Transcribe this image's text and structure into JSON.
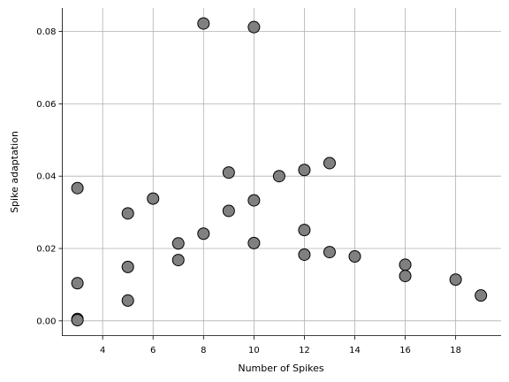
{
  "chart_data": {
    "type": "scatter",
    "xlabel": "Number of Spikes",
    "ylabel": "Spike adaptation",
    "xlim": [
      2.4,
      19.8
    ],
    "ylim": [
      -0.0042,
      0.0865
    ],
    "xticks": [
      4,
      6,
      8,
      10,
      12,
      14,
      16,
      18
    ],
    "xtick_labels": [
      "4",
      "6",
      "8",
      "10",
      "12",
      "14",
      "16",
      "18"
    ],
    "yticks": [
      0.0,
      0.02,
      0.04,
      0.06,
      0.08
    ],
    "ytick_labels": [
      "0.00",
      "0.02",
      "0.04",
      "0.06",
      "0.08"
    ],
    "grid": true,
    "marker_color": "#808080",
    "marker_edge_color": "#000000",
    "points": [
      {
        "x": 3,
        "y": 0.0367
      },
      {
        "x": 3,
        "y": 0.0104
      },
      {
        "x": 3,
        "y": 0.0005
      },
      {
        "x": 3,
        "y": 0.0002
      },
      {
        "x": 5,
        "y": 0.0297
      },
      {
        "x": 5,
        "y": 0.0149
      },
      {
        "x": 5,
        "y": 0.0056
      },
      {
        "x": 6,
        "y": 0.0338
      },
      {
        "x": 7,
        "y": 0.0214
      },
      {
        "x": 7,
        "y": 0.0168
      },
      {
        "x": 8,
        "y": 0.0822
      },
      {
        "x": 8,
        "y": 0.0241
      },
      {
        "x": 9,
        "y": 0.041
      },
      {
        "x": 9,
        "y": 0.0304
      },
      {
        "x": 10,
        "y": 0.0812
      },
      {
        "x": 10,
        "y": 0.0333
      },
      {
        "x": 10,
        "y": 0.0215
      },
      {
        "x": 11,
        "y": 0.04
      },
      {
        "x": 12,
        "y": 0.0417
      },
      {
        "x": 12,
        "y": 0.0251
      },
      {
        "x": 12,
        "y": 0.0183
      },
      {
        "x": 13,
        "y": 0.0436
      },
      {
        "x": 13,
        "y": 0.019
      },
      {
        "x": 14,
        "y": 0.0178
      },
      {
        "x": 16,
        "y": 0.0155
      },
      {
        "x": 16,
        "y": 0.0124
      },
      {
        "x": 18,
        "y": 0.0114
      },
      {
        "x": 19,
        "y": 0.007
      }
    ]
  }
}
